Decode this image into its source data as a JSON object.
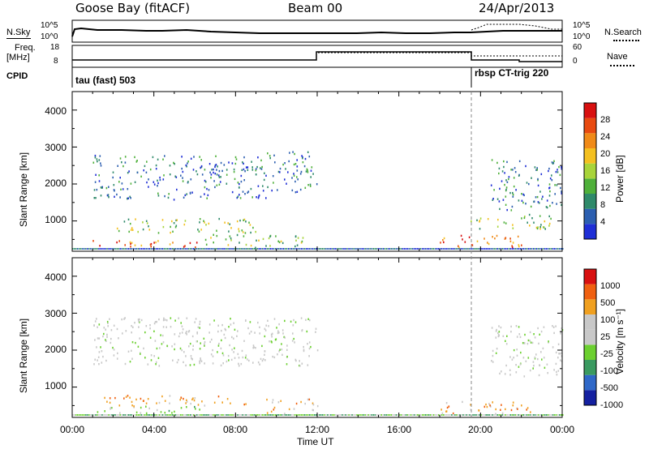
{
  "header": {
    "station": "Goose Bay (fitACF)",
    "beam": "Beam 00",
    "date": "24/Apr/2013"
  },
  "top_panels": {
    "nsky_label": "N.Sky",
    "nsky_ticks": [
      "10^5",
      "10^0"
    ],
    "nsearch_label": "N.Search",
    "nsearch_ticks": [
      "10^5",
      "10^0"
    ],
    "freq_label": "Freq.",
    "freq_unit": "[MHz]",
    "freq_ticks": [
      "18",
      "8"
    ],
    "nave_label": "Nave",
    "nave_ticks": [
      "60",
      "0"
    ],
    "cpid_label": "CPID",
    "cpid_segments": [
      {
        "text": "tau (fast) 503"
      },
      {
        "text": "rbsp CT-trig 220"
      }
    ]
  },
  "colors": {
    "power": [
      "#1f2fd6",
      "#2c5fb0",
      "#2f8a6a",
      "#4fb03a",
      "#a8d43a",
      "#f4c020",
      "#f08a18",
      "#e84a10",
      "#d81010"
    ],
    "velocity": [
      "#1420a0",
      "#2f68c8",
      "#3a9a60",
      "#6cd030",
      "#c8c8c8",
      "#c8c8c8",
      "#f0a020",
      "#f06010",
      "#d81010"
    ]
  },
  "chart_data": [
    {
      "type": "heatmap",
      "title": "Power",
      "ylabel": "Slant Range [km]",
      "ylim": [
        180,
        4500
      ],
      "y_ticks": [
        "1000",
        "2000",
        "3000",
        "4000"
      ],
      "colorbar_label": "Power [dB]",
      "colorbar_ticks": [
        "4",
        "8",
        "12",
        "16",
        "20",
        "24",
        "28"
      ],
      "regions": [
        {
          "t": [
            1.0,
            6.5
          ],
          "r": [
            300,
            500
          ],
          "level": "strong"
        },
        {
          "t": [
            6.5,
            11.5
          ],
          "r": [
            300,
            650
          ],
          "level": "medium"
        },
        {
          "t": [
            2.0,
            9.0
          ],
          "r": [
            700,
            1100
          ],
          "level": "medium"
        },
        {
          "t": [
            1.0,
            9.5
          ],
          "r": [
            1600,
            2800
          ],
          "level": "weak"
        },
        {
          "t": [
            9.5,
            12.0
          ],
          "r": [
            1800,
            2900
          ],
          "level": "weak"
        },
        {
          "t": [
            18.0,
            22.0
          ],
          "r": [
            300,
            650
          ],
          "level": "strong"
        },
        {
          "t": [
            20.5,
            24.0
          ],
          "r": [
            1300,
            2700
          ],
          "level": "weak"
        },
        {
          "t": [
            19.5,
            23.5
          ],
          "r": [
            800,
            1200
          ],
          "level": "medium"
        }
      ]
    },
    {
      "type": "heatmap",
      "title": "Velocity",
      "ylabel": "Slant Range [km]",
      "ylim": [
        180,
        4500
      ],
      "y_ticks": [
        "1000",
        "2000",
        "3000",
        "4000"
      ],
      "colorbar_label": "Velocity [m s⁻¹]",
      "colorbar_ticks": [
        "1000",
        "500",
        "100",
        "25",
        "-25",
        "-100",
        "-500",
        "-1000"
      ],
      "xlabel": "Time UT",
      "x_ticks": [
        "00:00",
        "04:00",
        "08:00",
        "12:00",
        "16:00",
        "20:00",
        "00:00"
      ],
      "xlim": [
        0,
        24
      ],
      "regions": [
        {
          "t": [
            1.0,
            6.5
          ],
          "r": [
            300,
            500
          ],
          "level": "green"
        },
        {
          "t": [
            1.5,
            8.5
          ],
          "r": [
            500,
            800
          ],
          "level": "orange"
        },
        {
          "t": [
            1.0,
            12.0
          ],
          "r": [
            1600,
            2900
          ],
          "level": "grey"
        },
        {
          "t": [
            9.5,
            12.0
          ],
          "r": [
            300,
            700
          ],
          "level": "orange"
        },
        {
          "t": [
            18.0,
            22.5
          ],
          "r": [
            300,
            650
          ],
          "level": "orange"
        },
        {
          "t": [
            20.5,
            24.0
          ],
          "r": [
            1300,
            2700
          ],
          "level": "grey"
        }
      ]
    }
  ]
}
